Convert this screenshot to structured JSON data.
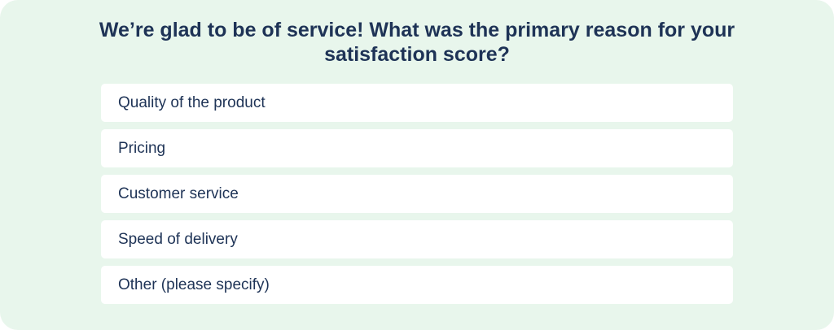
{
  "question": {
    "title": "We’re glad to be of service! What was the primary reason for your satisfaction score?",
    "options": [
      "Quality of the product",
      "Pricing",
      "Customer service",
      "Speed of delivery",
      "Other (please specify)"
    ]
  }
}
